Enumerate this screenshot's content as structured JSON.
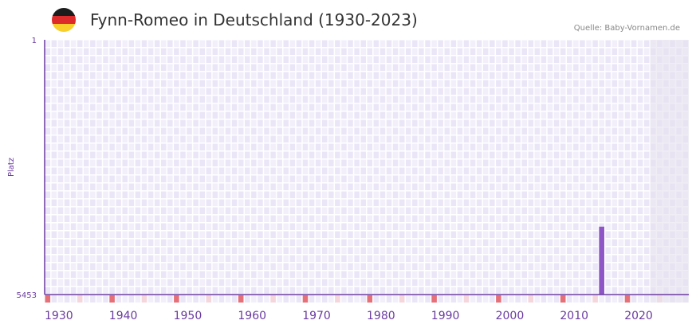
{
  "header": {
    "title": "Fynn-Romeo in Deutschland (1930-2023)",
    "source": "Quelle: Baby-Vornamen.de"
  },
  "colors": {
    "bar": "#8e55c6",
    "axis": "#6a3aa0",
    "cell_a": "#f2effb",
    "cell_b": "#ebe6f7",
    "marker": "#e57079",
    "marker_light": "#f5d6dd",
    "future": "#e6e1ee"
  },
  "chart_data": {
    "type": "bar",
    "title": "Fynn-Romeo in Deutschland (1930-2023)",
    "xlabel": "",
    "ylabel": "Platz",
    "xlim": [
      1930,
      2030
    ],
    "ylim": [
      5453,
      1
    ],
    "y_ticks": [
      "1",
      "5453"
    ],
    "x_ticks": [
      "1930",
      "1940",
      "1950",
      "1960",
      "1970",
      "1980",
      "1990",
      "2000",
      "2010",
      "2020"
    ],
    "data_until": 2023,
    "series": [
      {
        "name": "Platz",
        "x": [
          2016
        ],
        "values": [
          4000
        ]
      }
    ]
  }
}
